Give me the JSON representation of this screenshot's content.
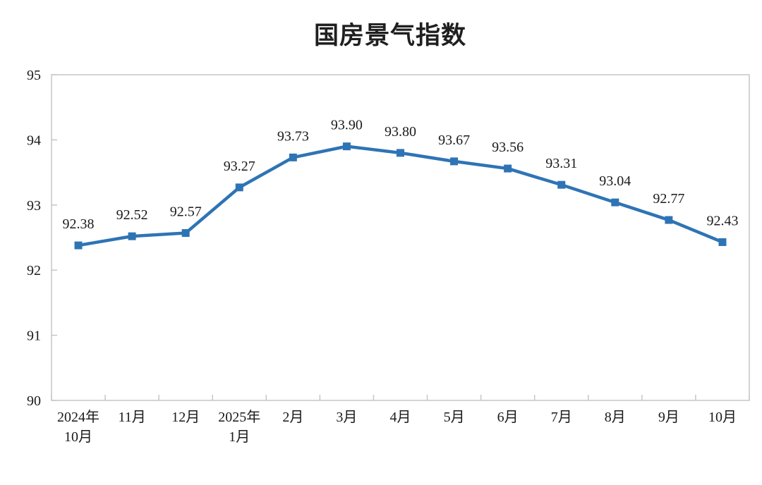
{
  "chart_data": {
    "type": "line",
    "title": "国房景气指数",
    "categories": [
      "2024年\n10月",
      "11月",
      "12月",
      "2025年\n1月",
      "2月",
      "3月",
      "4月",
      "5月",
      "6月",
      "7月",
      "8月",
      "9月",
      "10月"
    ],
    "values": [
      92.38,
      92.52,
      92.57,
      93.27,
      93.73,
      93.9,
      93.8,
      93.67,
      93.56,
      93.31,
      93.04,
      92.77,
      92.43
    ],
    "data_labels": [
      "92.38",
      "92.52",
      "92.57",
      "93.27",
      "93.73",
      "93.90",
      "93.80",
      "93.67",
      "93.56",
      "93.31",
      "93.04",
      "92.77",
      "92.43"
    ],
    "ytick_labels": [
      "90",
      "91",
      "92",
      "93",
      "94",
      "95"
    ],
    "ylim": [
      90,
      95
    ],
    "ytick_step": 1,
    "grid": false,
    "legend": "none",
    "marker": "square",
    "line_color": "#2e74b5",
    "axis_color": "#c6c6c6",
    "text_color": "#1a1a1a"
  }
}
